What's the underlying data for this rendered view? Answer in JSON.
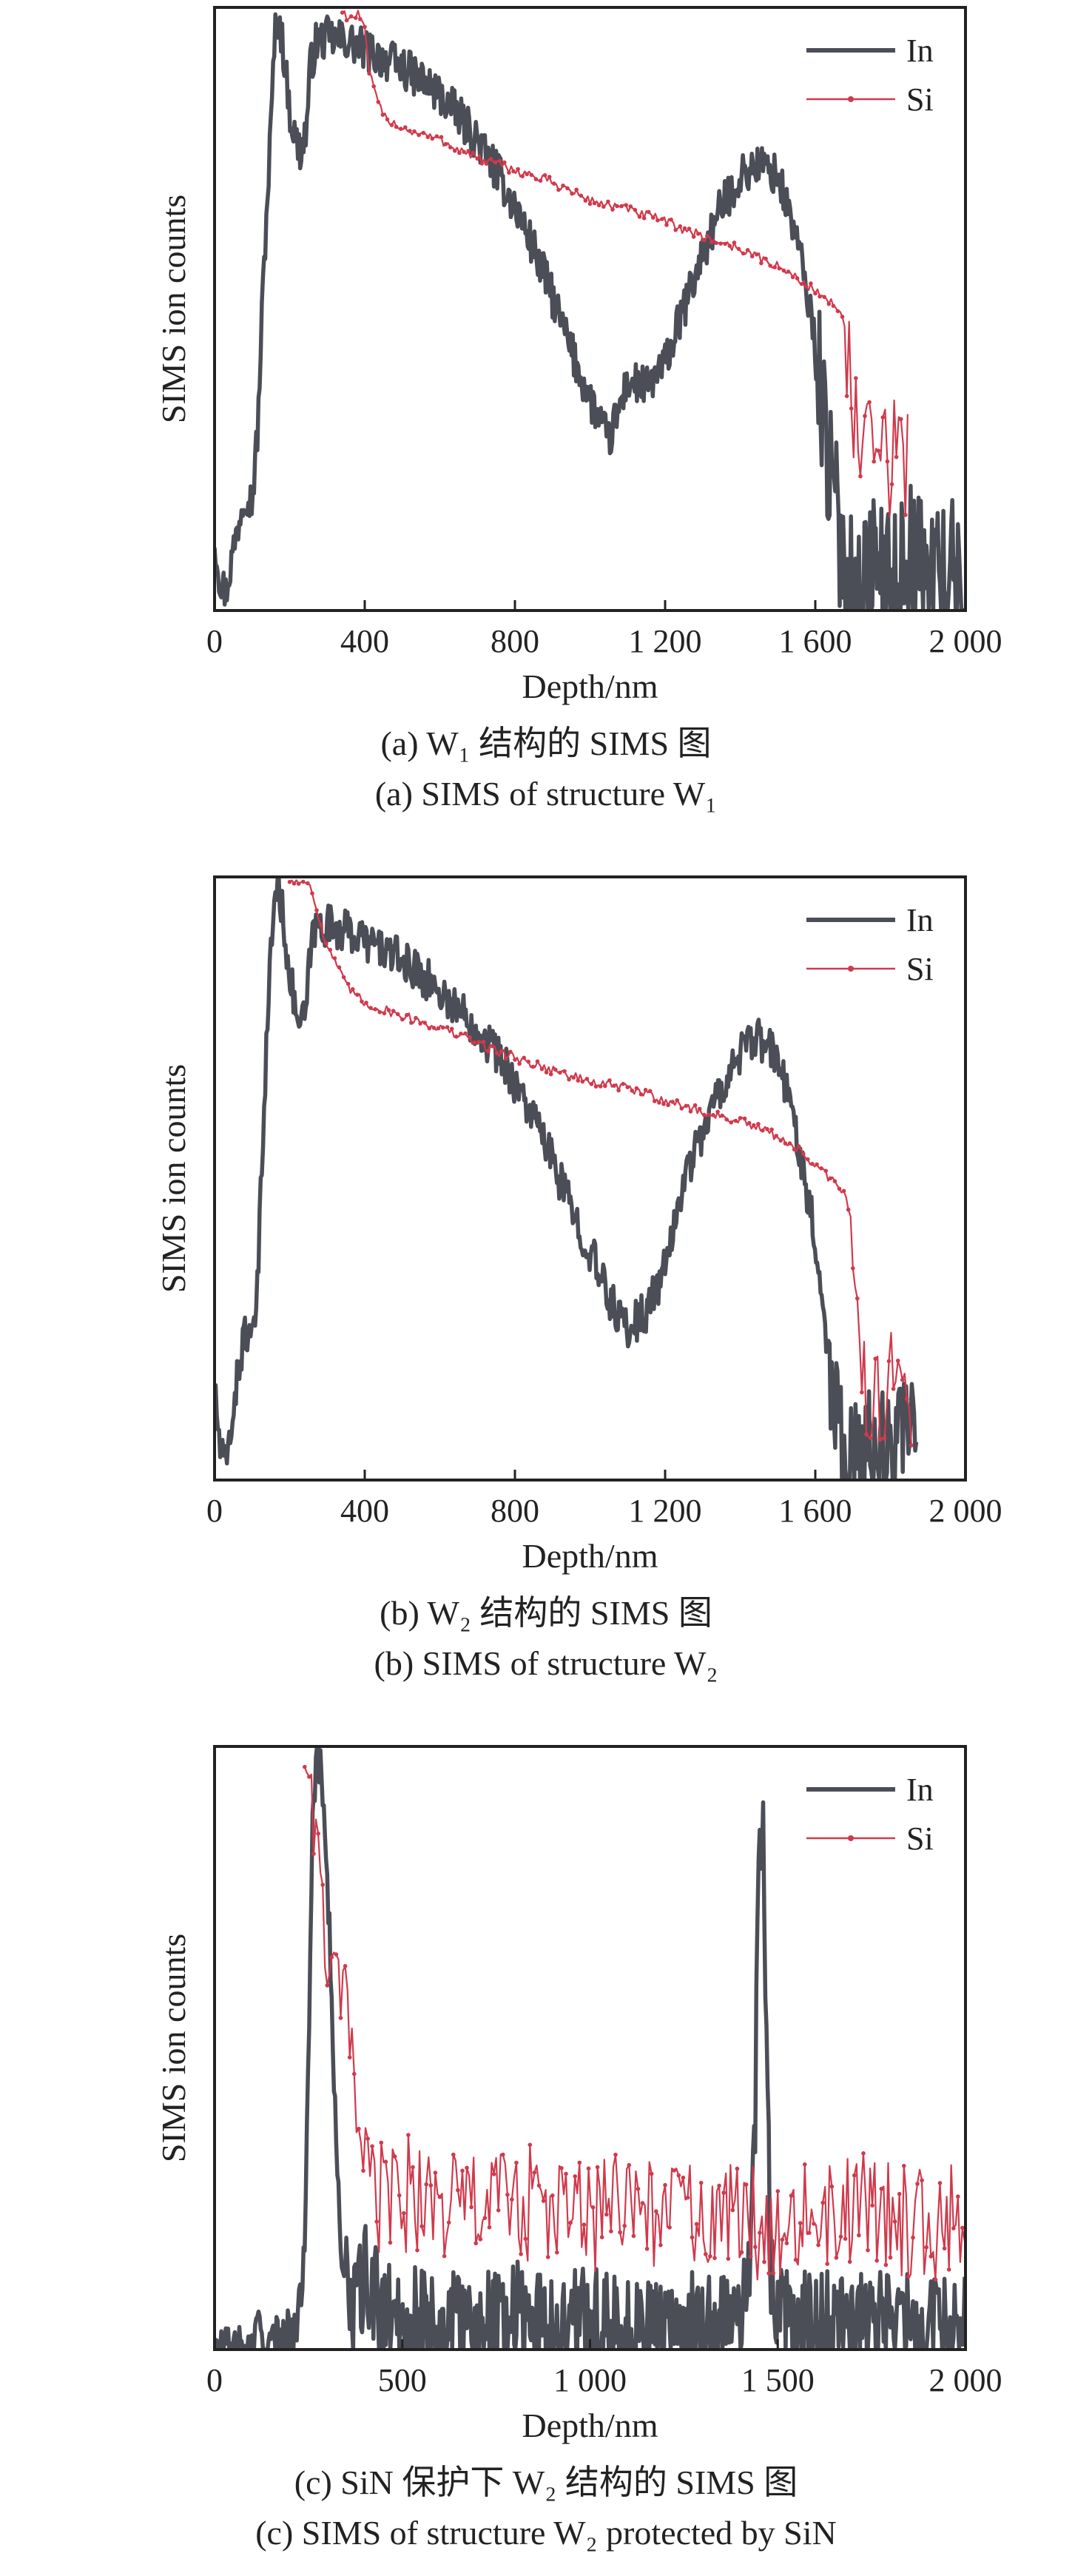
{
  "figure": {
    "panels": [
      {
        "caption_cn": "(a) W₁ 结构的 SIMS 图",
        "caption_en": "(a) SIMS of structure W₁"
      },
      {
        "caption_cn": "(b) W₂ 结构的 SIMS 图",
        "caption_en": "(b) SIMS of structure W₂"
      },
      {
        "caption_cn": "(c) SiN 保护下 W₂ 结构的 SIMS 图",
        "caption_en": "(c) SIMS of structure W₂ protected by SiN"
      }
    ]
  },
  "chart_data": [
    {
      "type": "line",
      "xlabel": "Depth/nm",
      "ylabel": "SIMS ion counts",
      "xlim": [
        0,
        2000
      ],
      "ylim": [
        0,
        100
      ],
      "xticks": [
        0,
        400,
        800,
        1200,
        1600,
        2000
      ],
      "xtick_labels": [
        "0",
        "400",
        "800",
        "1 200",
        "1 600",
        "2 000"
      ],
      "yticks_shown": false,
      "grid": false,
      "legend_position": "top-right",
      "series": [
        {
          "name": "In",
          "color": "#4b4e57",
          "noise": 3.5,
          "noise_from": 1600,
          "noise_to": 2000,
          "noise_amp": 12,
          "x": [
            0,
            15,
            30,
            50,
            80,
            100,
            115,
            130,
            150,
            160,
            170,
            185,
            200,
            215,
            230,
            245,
            255,
            270,
            300,
            350,
            400,
            450,
            500,
            550,
            600,
            650,
            700,
            750,
            800,
            850,
            900,
            950,
            1000,
            1050,
            1100,
            1150,
            1200,
            1250,
            1300,
            1350,
            1400,
            1450,
            1500,
            1550,
            1600,
            1640,
            1680,
            1720,
            1760,
            1800,
            1850,
            1900,
            1950,
            2000
          ],
          "y": [
            12,
            5,
            3,
            10,
            20,
            18,
            30,
            55,
            80,
            95,
            99,
            92,
            83,
            78,
            76,
            80,
            90,
            94,
            95,
            94.5,
            93,
            91.5,
            90,
            88,
            85.5,
            82,
            78,
            73,
            67,
            60,
            52,
            43,
            35,
            28,
            38,
            37,
            41,
            50,
            59,
            67,
            72,
            74,
            72,
            62,
            45,
            22,
            7,
            2,
            8,
            4,
            10,
            5,
            8,
            3
          ]
        },
        {
          "name": "Si",
          "color": "#d03a4c",
          "markers": true,
          "noise": 0.8,
          "noise_from": 1680,
          "noise_to": 1850,
          "noise_amp": 10,
          "x": [
            340,
            360,
            380,
            395,
            400,
            410,
            430,
            450,
            500,
            600,
            700,
            800,
            900,
            1000,
            1100,
            1200,
            1300,
            1400,
            1500,
            1580,
            1640,
            1670,
            1680,
            1690,
            1700,
            1720,
            1740,
            1760,
            1780,
            1800,
            1820,
            1840,
            1850
          ],
          "y": [
            99.5,
            98,
            99,
            97.5,
            96,
            90,
            85,
            82,
            80,
            78,
            75,
            73,
            71,
            68,
            66.5,
            64.5,
            62,
            60,
            57,
            54,
            51,
            50,
            46,
            40,
            32,
            25,
            26,
            25,
            27,
            24,
            26,
            25,
            27
          ]
        }
      ]
    },
    {
      "type": "line",
      "xlabel": "Depth/nm",
      "ylabel": "SIMS ion counts",
      "xlim": [
        0,
        2000
      ],
      "ylim": [
        0,
        100
      ],
      "xticks": [
        0,
        400,
        800,
        1200,
        1600,
        2000
      ],
      "xtick_labels": [
        "0",
        "400",
        "800",
        "1 200",
        "1 600",
        "2 000"
      ],
      "yticks_shown": false,
      "grid": false,
      "legend_position": "top-right",
      "series": [
        {
          "name": "In",
          "color": "#4b4e57",
          "noise": 3.5,
          "noise_from": 1630,
          "noise_to": 1870,
          "noise_amp": 11,
          "x": [
            0,
            15,
            30,
            50,
            80,
            100,
            115,
            130,
            150,
            160,
            170,
            185,
            200,
            215,
            230,
            245,
            255,
            270,
            300,
            350,
            400,
            450,
            500,
            550,
            600,
            650,
            700,
            750,
            800,
            850,
            900,
            950,
            1000,
            1050,
            1100,
            1150,
            1200,
            1250,
            1300,
            1350,
            1400,
            1450,
            1500,
            1550,
            1600,
            1640,
            1680,
            1720,
            1760,
            1800,
            1850,
            1870
          ],
          "y": [
            15,
            5,
            2,
            12,
            25,
            22,
            32,
            60,
            88,
            97,
            99,
            92,
            84,
            78,
            75,
            78,
            88,
            92,
            92,
            91,
            89.5,
            88,
            86,
            84,
            81,
            78,
            75,
            71,
            66,
            60,
            53,
            45,
            38,
            30,
            25,
            28,
            35,
            50,
            58,
            65,
            71,
            73,
            70,
            58,
            40,
            18,
            5,
            2,
            6,
            3,
            8,
            3
          ]
        },
        {
          "name": "Si",
          "color": "#d03a4c",
          "markers": true,
          "noise": 0.8,
          "noise_from": 1700,
          "noise_to": 1860,
          "noise_amp": 9,
          "x": [
            200,
            230,
            250,
            260,
            270,
            290,
            320,
            350,
            400,
            500,
            600,
            700,
            800,
            900,
            1000,
            1100,
            1200,
            1300,
            1400,
            1500,
            1550,
            1600,
            1640,
            1680,
            1700,
            1710,
            1720,
            1740,
            1760,
            1780,
            1800,
            1820,
            1840,
            1860
          ],
          "y": [
            99.5,
            99,
            99.5,
            98,
            95,
            90,
            86,
            82,
            79,
            77,
            75,
            72.5,
            70,
            68,
            66,
            65,
            63,
            61,
            59.5,
            57,
            55,
            52,
            50,
            47,
            42,
            30,
            20,
            12,
            16,
            14,
            16,
            13,
            15,
            12
          ]
        }
      ]
    },
    {
      "type": "line",
      "xlabel": "Depth/nm",
      "ylabel": "SIMS ion counts",
      "xlim": [
        0,
        2000
      ],
      "ylim": [
        0,
        100
      ],
      "xticks": [
        0,
        500,
        1000,
        1500,
        2000
      ],
      "xtick_labels": [
        "0",
        "500",
        "1 000",
        "1 500",
        "2 000"
      ],
      "yticks_shown": false,
      "grid": false,
      "legend_position": "top-right",
      "series": [
        {
          "name": "In",
          "color": "#4b4e57",
          "noise": 4,
          "noise_from": 350,
          "noise_to": 2000,
          "noise_amp": 9,
          "x": [
            0,
            100,
            110,
            120,
            130,
            150,
            170,
            190,
            200,
            210,
            220,
            230,
            240,
            250,
            260,
            270,
            280,
            290,
            300,
            310,
            320,
            330,
            340,
            350,
            380,
            400,
            430,
            460,
            500,
            600,
            700,
            800,
            900,
            1000,
            1100,
            1200,
            1300,
            1400,
            1420,
            1440,
            1450,
            1460,
            1470,
            1480,
            1500,
            1600,
            1700,
            1800,
            1900,
            2000
          ],
          "y": [
            0,
            0,
            2,
            4,
            1,
            0,
            2,
            4,
            2,
            3,
            5,
            8,
            20,
            50,
            86,
            98,
            97,
            92,
            80,
            62,
            40,
            25,
            15,
            10,
            7,
            12,
            8,
            5,
            6,
            4,
            5,
            6,
            4,
            5,
            3,
            4,
            5,
            4,
            8,
            40,
            80,
            90,
            55,
            15,
            5,
            4,
            4,
            5,
            3,
            4
          ]
        },
        {
          "name": "Si",
          "color": "#d03a4c",
          "markers": true,
          "noise": 6,
          "noise_from": 400,
          "noise_to": 2000,
          "noise_amp": 10,
          "x": [
            240,
            245,
            250,
            255,
            260,
            270,
            280,
            290,
            300,
            310,
            330,
            350,
            370,
            390,
            400,
            420,
            450,
            500,
            600,
            700,
            800,
            900,
            1000,
            1100,
            1200,
            1300,
            1400,
            1500,
            1600,
            1700,
            1800,
            1900,
            2000
          ],
          "y": [
            99,
            98,
            96,
            94,
            90,
            85,
            78,
            70,
            65,
            62,
            60,
            58,
            45,
            33,
            28,
            26,
            25,
            26,
            24,
            24,
            25,
            23,
            22,
            24,
            23,
            22,
            21,
            22,
            22,
            23,
            22,
            21,
            23
          ]
        }
      ]
    }
  ]
}
